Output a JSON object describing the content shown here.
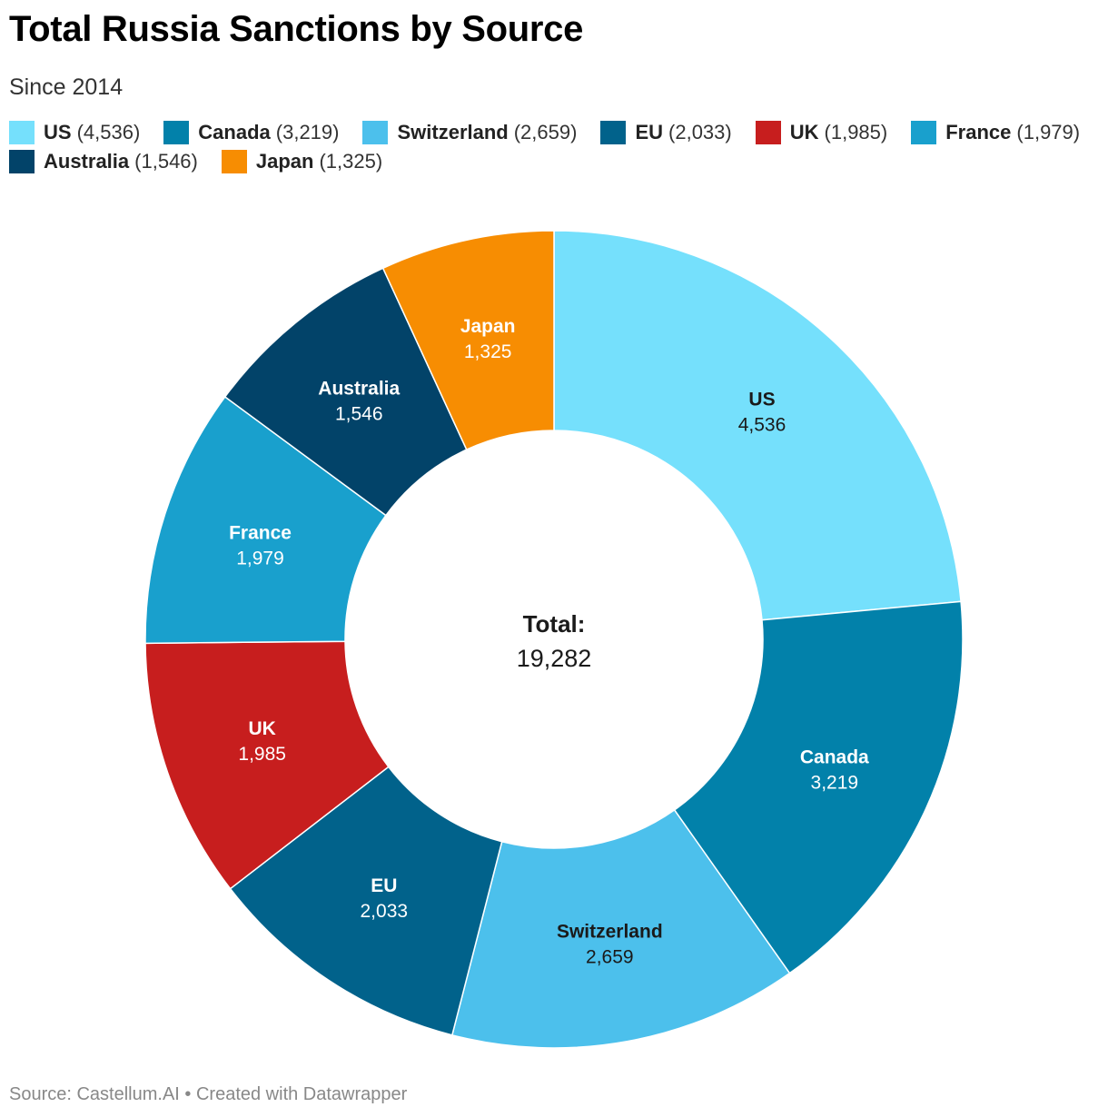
{
  "title": "Total Russia Sanctions by Source",
  "subtitle": "Since 2014",
  "footer": "Source: Castellum.AI • Created with Datawrapper",
  "colors": {
    "US": "#75e0fc",
    "Canada": "#0281aa",
    "Switzerland": "#4cc0ec",
    "EU": "#01628b",
    "UK": "#c71e1e",
    "France": "#19a0cd",
    "Australia": "#024369",
    "Japan": "#f78d02"
  },
  "legend": [
    {
      "name": "US",
      "count": "(4,536)"
    },
    {
      "name": "Canada",
      "count": "(3,219)"
    },
    {
      "name": "Switzerland",
      "count": "(2,659)"
    },
    {
      "name": "EU",
      "count": "(2,033)"
    },
    {
      "name": "UK",
      "count": "(1,985)"
    },
    {
      "name": "France",
      "count": "(1,979)"
    },
    {
      "name": "Australia",
      "count": "(1,546)"
    },
    {
      "name": "Japan",
      "count": "(1,325)"
    }
  ],
  "chart_data": {
    "type": "pie",
    "variant": "donut",
    "slices": [
      {
        "label": "US",
        "value": 4536,
        "value_label": "4,536",
        "label_color": "dark"
      },
      {
        "label": "Canada",
        "value": 3219,
        "value_label": "3,219",
        "label_color": "light"
      },
      {
        "label": "Switzerland",
        "value": 2659,
        "value_label": "2,659",
        "label_color": "dark"
      },
      {
        "label": "EU",
        "value": 2033,
        "value_label": "2,033",
        "label_color": "light"
      },
      {
        "label": "UK",
        "value": 1985,
        "value_label": "1,985",
        "label_color": "light"
      },
      {
        "label": "France",
        "value": 1979,
        "value_label": "1,979",
        "label_color": "light"
      },
      {
        "label": "Australia",
        "value": 1546,
        "value_label": "1,546",
        "label_color": "light"
      },
      {
        "label": "Japan",
        "value": 1325,
        "value_label": "1,325",
        "label_color": "light"
      }
    ],
    "center_label": "Total:",
    "center_value": "19,282",
    "legend_position": "top"
  }
}
